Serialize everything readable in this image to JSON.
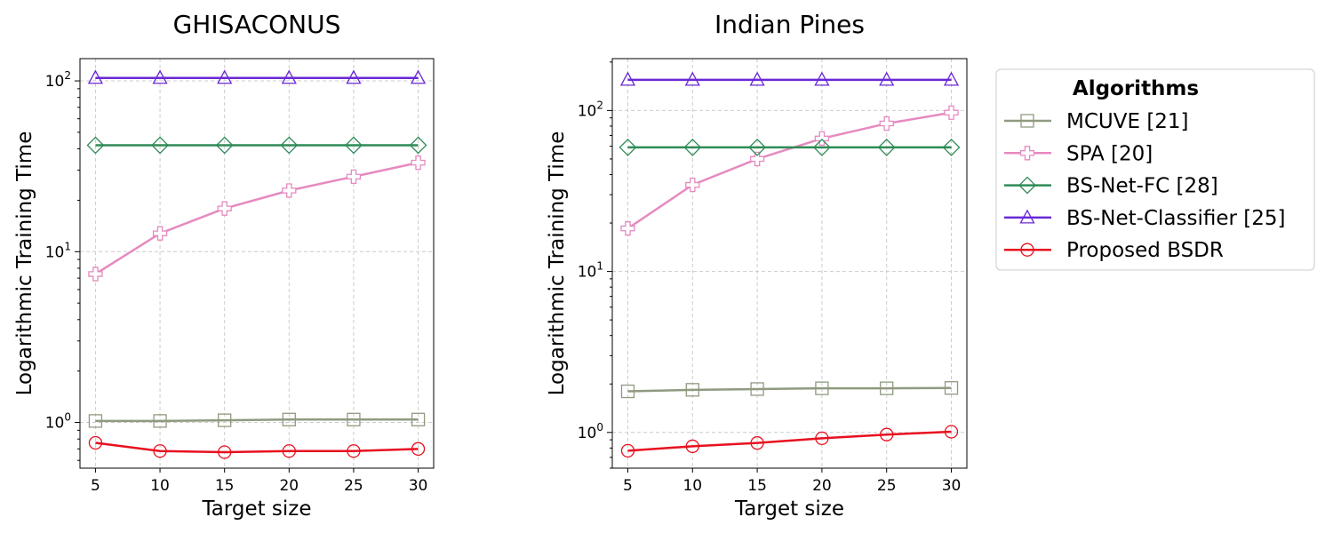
{
  "chart_data": {
    "type": "line",
    "legend": {
      "title": "Algorithms",
      "placement": "right",
      "entries": [
        {
          "label": "MCUVE [21]",
          "color": "#8f9a80",
          "marker": "square"
        },
        {
          "label": "SPA [20]",
          "color": "#e68ac0",
          "marker": "plus"
        },
        {
          "label": "BS-Net-FC [28]",
          "color": "#2e8b57",
          "marker": "diamond"
        },
        {
          "label": "BS-Net-Classifier [25]",
          "color": "#6a28d6",
          "marker": "triangle"
        },
        {
          "label": "Proposed BSDR",
          "color": "#e8101f",
          "marker": "circle"
        }
      ]
    },
    "panels": [
      {
        "title": "GHISACONUS",
        "xlabel": "Target size",
        "ylabel": "Logarithmic Training Time",
        "yscale": "log",
        "ylim": [
          0.54,
          135
        ],
        "x": [
          5,
          10,
          15,
          20,
          25,
          30
        ],
        "xlim": [
          3.8,
          31.2
        ],
        "grid": true,
        "series": [
          {
            "name": "MCUVE [21]",
            "values": [
              1.02,
              1.02,
              1.03,
              1.04,
              1.04,
              1.04
            ]
          },
          {
            "name": "SPA [20]",
            "values": [
              7.4,
              12.8,
              17.9,
              22.8,
              27.5,
              33.2
            ]
          },
          {
            "name": "BS-Net-FC [28]",
            "values": [
              42,
              42,
              42,
              42,
              42,
              42
            ]
          },
          {
            "name": "BS-Net-Classifier [25]",
            "values": [
              104,
              104,
              104,
              104,
              104,
              104
            ]
          },
          {
            "name": "Proposed BSDR",
            "values": [
              0.76,
              0.68,
              0.67,
              0.68,
              0.68,
              0.7
            ]
          }
        ]
      },
      {
        "title": "Indian Pines",
        "xlabel": "Target size",
        "ylabel": "Logarithmic Training Time",
        "yscale": "log",
        "ylim": [
          0.6,
          210
        ],
        "x": [
          5,
          10,
          15,
          20,
          25,
          30
        ],
        "xlim": [
          3.8,
          31.2
        ],
        "grid": true,
        "series": [
          {
            "name": "MCUVE [21]",
            "values": [
              1.8,
              1.84,
              1.86,
              1.88,
              1.88,
              1.89
            ]
          },
          {
            "name": "SPA [20]",
            "values": [
              18.5,
              34.5,
              50,
              67,
              83,
              97
            ]
          },
          {
            "name": "BS-Net-FC [28]",
            "values": [
              59,
              59,
              59,
              59,
              59,
              59
            ]
          },
          {
            "name": "BS-Net-Classifier [25]",
            "values": [
              155,
              155,
              155,
              155,
              155,
              155
            ]
          },
          {
            "name": "Proposed BSDR",
            "values": [
              0.77,
              0.82,
              0.86,
              0.92,
              0.97,
              1.01
            ]
          }
        ]
      }
    ],
    "xticks": [
      "5",
      "10",
      "15",
      "20",
      "25",
      "30"
    ],
    "yticks": [
      {
        "base": "10",
        "exp": "0",
        "value": 1
      },
      {
        "base": "10",
        "exp": "1",
        "value": 10
      },
      {
        "base": "10",
        "exp": "2",
        "value": 100
      }
    ]
  }
}
